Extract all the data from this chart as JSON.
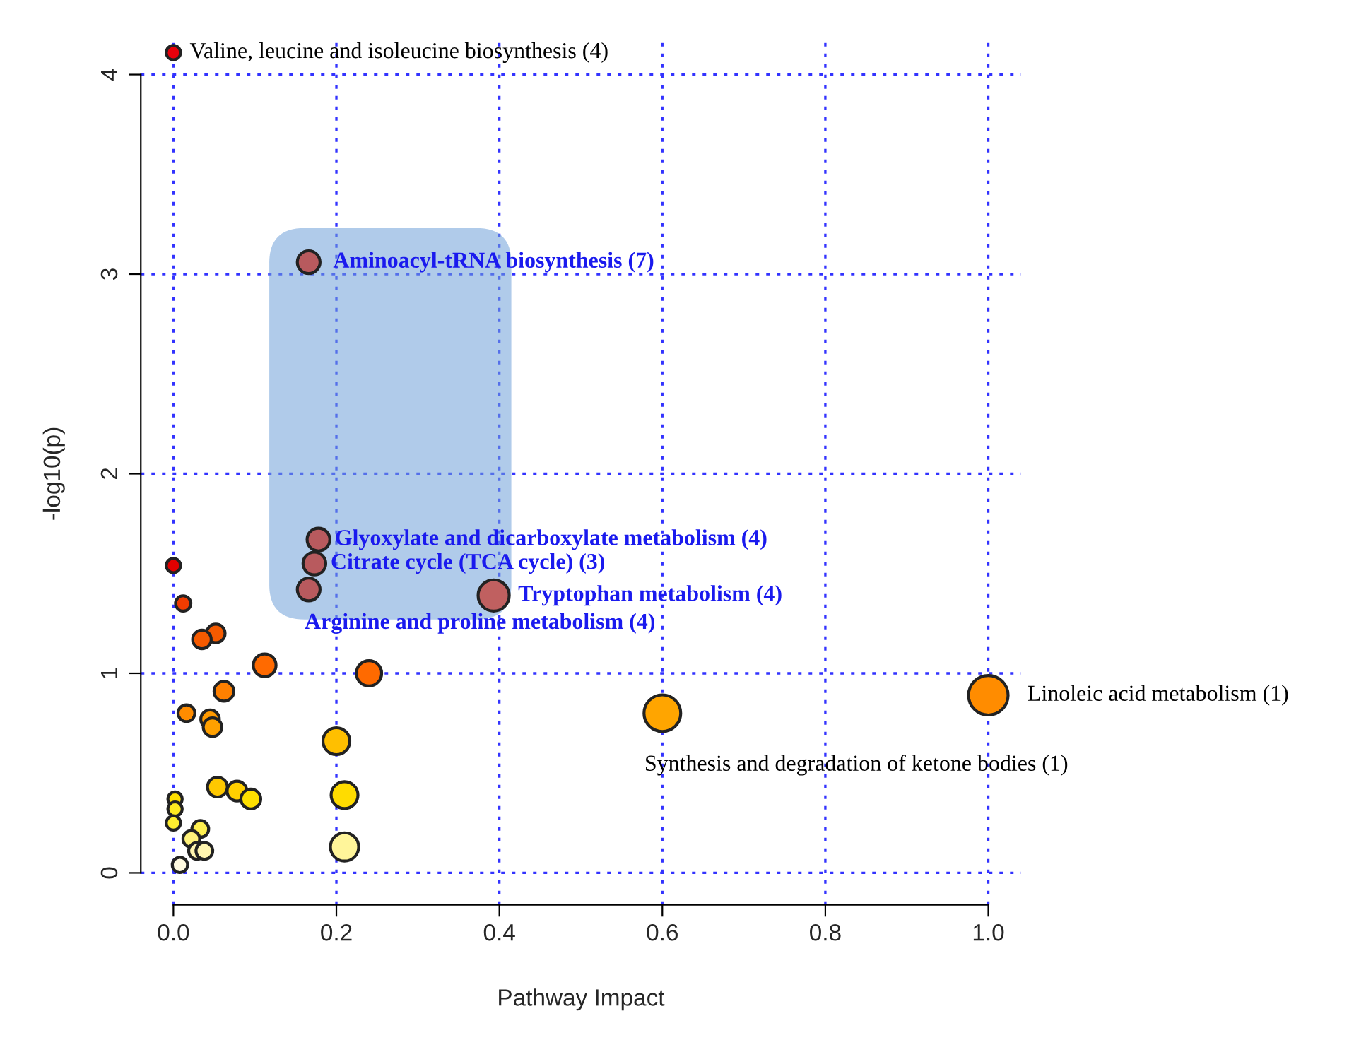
{
  "chart_data": {
    "type": "bubble",
    "xlabel": "Pathway Impact",
    "ylabel": "-log10(p)",
    "x": [
      0,
      0.166,
      0.178,
      0.173,
      0.166,
      0.393,
      1.0,
      0.6,
      0,
      0.012,
      0.052,
      0.035,
      0.112,
      0.24,
      0.062,
      0.016,
      0.045,
      0.048,
      0.2,
      0.054,
      0.078,
      0.095,
      0.21,
      0.002,
      0.002,
      0,
      0.033,
      0.022,
      0.029,
      0.038,
      0.21,
      0.008
    ],
    "values": [
      4.11,
      3.06,
      1.67,
      1.55,
      1.42,
      1.39,
      0.89,
      0.8,
      1.54,
      1.35,
      1.2,
      1.17,
      1.04,
      1.0,
      0.91,
      0.8,
      0.77,
      0.73,
      0.66,
      0.43,
      0.41,
      0.37,
      0.39,
      0.37,
      0.32,
      0.25,
      0.22,
      0.17,
      0.11,
      0.11,
      0.13,
      0.04
    ],
    "sizes": [
      0.13,
      0.33,
      0.33,
      0.33,
      0.33,
      0.62,
      1,
      0.86,
      0.13,
      0.15,
      0.22,
      0.22,
      0.33,
      0.41,
      0.25,
      0.18,
      0.22,
      0.22,
      0.46,
      0.25,
      0.25,
      0.25,
      0.46,
      0.13,
      0.13,
      0.13,
      0.18,
      0.18,
      0.18,
      0.18,
      0.51,
      0.15
    ],
    "colors": [
      "#e8000b",
      "#b85a5e",
      "#b85a5e",
      "#b85a5e",
      "#b85a5e",
      "#c06060",
      "#ff8c00",
      "#ffa500",
      "#e00000",
      "#f03c00",
      "#f55a00",
      "#f55a00",
      "#ff6a00",
      "#ff6a00",
      "#ff8000",
      "#ff8c00",
      "#ff9a00",
      "#ffa000",
      "#ffbf00",
      "#ffc800",
      "#ffd000",
      "#ffe000",
      "#ffdc00",
      "#ffe000",
      "#ffea20",
      "#ffee30",
      "#fff050",
      "#fff27a",
      "#fff5b0",
      "#fff5b0",
      "#fff59a",
      "#fffae0"
    ],
    "xlim": [
      -0.04,
      1.04
    ],
    "ylim": [
      -0.16,
      4.16
    ],
    "xticks": [
      {
        "value": 0,
        "label": "0.0"
      },
      {
        "value": 0.2,
        "label": "0.2"
      },
      {
        "value": 0.4,
        "label": "0.4"
      },
      {
        "value": 0.6,
        "label": "0.6"
      },
      {
        "value": 0.8,
        "label": "0.8"
      },
      {
        "value": 1,
        "label": "1.0"
      }
    ],
    "yticks": [
      0,
      1,
      2,
      3,
      4
    ],
    "grid": true,
    "annotations": [
      {
        "text": "Valine, leucine and isoleucine biosynthesis (4)",
        "x": 0,
        "y": 4.11
      },
      {
        "text": "Aminoacyl-tRNA biosynthesis (7)",
        "x": 0.166,
        "y": 3.06
      },
      {
        "text": "Glyoxylate and dicarboxylate metabolism (4)",
        "x": 0.178,
        "y": 1.67
      },
      {
        "text": "Citrate cycle (TCA cycle) (3)",
        "x": 0.173,
        "y": 1.55
      },
      {
        "text": "Tryptophan metabolism (4)",
        "x": 0.393,
        "y": 1.39
      },
      {
        "text": "Arginine and proline metabolism (4)",
        "x": 0.166,
        "y": 1.42
      },
      {
        "text": "Linoleic acid metabolism (1)",
        "x": 1.0,
        "y": 0.89
      },
      {
        "text": "Synthesis and degradation of ketone bodies (1)",
        "x": 0.6,
        "y": 0.8
      }
    ]
  }
}
